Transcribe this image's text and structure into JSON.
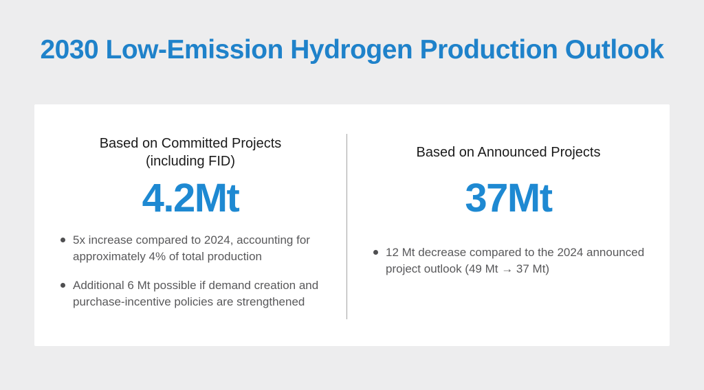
{
  "page": {
    "title": "2030 Low-Emission Hydrogen Production Outlook"
  },
  "colors": {
    "background": "#ededee",
    "card": "#ffffff",
    "title_blue": "#1f82ca",
    "value_blue": "#1e89d2",
    "heading_text": "#1a1a1a",
    "body_text": "#58585a",
    "divider": "#a3a3a3"
  },
  "panels": [
    {
      "heading": "Based on Committed Projects",
      "heading_note": "(including FID)",
      "value": "4.2Mt",
      "bullets": [
        "5x increase compared to 2024, accounting for approximately 4% of total production",
        "Additional 6 Mt possible if demand creation and purchase-incentive policies are strengthened"
      ]
    },
    {
      "heading": "Based on Announced Projects",
      "heading_note": "",
      "value": "37Mt",
      "bullets": [
        "12 Mt decrease compared to the 2024 announced project outlook (49 Mt → 37 Mt)"
      ]
    }
  ],
  "chart_data": {
    "type": "table",
    "title": "2030 Low-Emission Hydrogen Production Outlook",
    "categories": [
      "Based on Committed Projects (including FID)",
      "Based on Announced Projects"
    ],
    "values": [
      4.2,
      37
    ],
    "unit": "Mt",
    "annotations": [
      "5x increase compared to 2024, accounting for approximately 4% of total production",
      "Additional 6 Mt possible if demand creation and purchase-incentive policies are strengthened",
      "12 Mt decrease compared to the 2024 announced project outlook (49 Mt → 37 Mt)"
    ]
  }
}
